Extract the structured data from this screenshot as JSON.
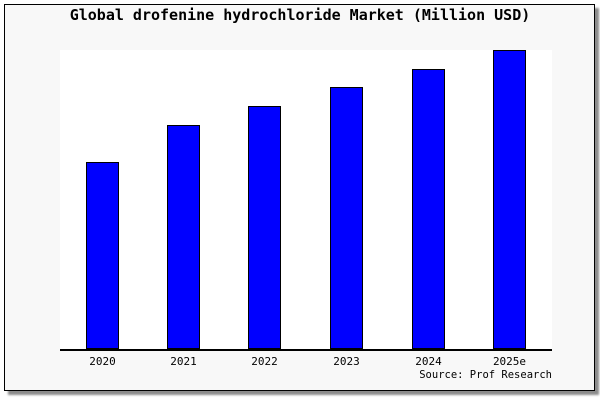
{
  "window": {
    "background": "#ffffff",
    "frame_background": "#f8f8f8",
    "frame_border_color": "#000000",
    "shadow_color": "#8c8c8c"
  },
  "chart_data": {
    "type": "bar",
    "title": "Global drofenine hydrochloride Market (Million USD)",
    "categories": [
      "2020",
      "2021",
      "2022",
      "2023",
      "2024",
      "2025e"
    ],
    "values": [
      62.5,
      74.9,
      81.3,
      87.6,
      93.8,
      100
    ],
    "values_note": "Y axis has no ticks or labels; values estimated as percent of tallest bar (2025e = 100)",
    "xlabel": "",
    "ylabel": "",
    "ylim": [
      0,
      100
    ],
    "y_axis_visible": false,
    "x_axis_visible": true,
    "grid": false,
    "legend": false,
    "bar_color": "#0000ff",
    "bar_edge_color": "#000000",
    "plot_background": "#ffffff",
    "source_label": "Source: Prof Research"
  }
}
